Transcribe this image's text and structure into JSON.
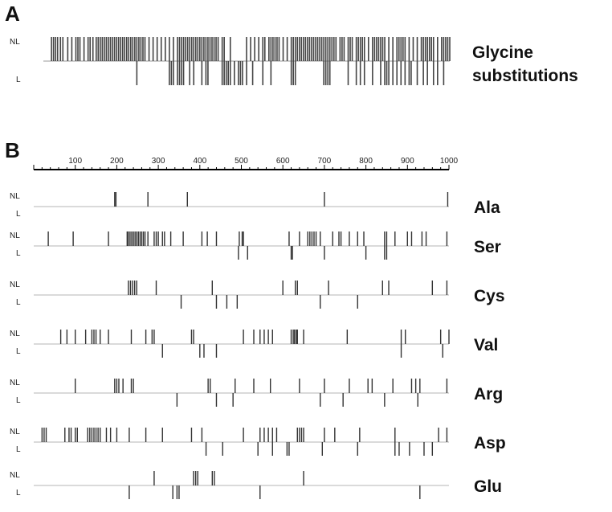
{
  "panel_a": {
    "letter": "A",
    "title_lines": [
      "Glycine",
      "substitutions"
    ],
    "nl_label": "NL",
    "l_label": "L",
    "nl_positions": [
      20,
      25,
      30,
      35,
      42,
      48,
      60,
      70,
      80,
      85,
      90,
      100,
      110,
      115,
      122,
      130,
      135,
      140,
      145,
      150,
      155,
      160,
      165,
      170,
      175,
      180,
      185,
      190,
      195,
      200,
      205,
      210,
      215,
      220,
      225,
      230,
      235,
      240,
      245,
      250,
      260,
      270,
      280,
      290,
      300,
      310,
      320,
      330,
      335,
      340,
      345,
      350,
      355,
      360,
      365,
      370,
      375,
      380,
      385,
      390,
      395,
      400,
      405,
      410,
      415,
      420,
      425,
      430,
      440,
      445,
      460,
      500,
      510,
      520,
      530,
      540,
      545,
      555,
      560,
      565,
      570,
      575,
      580,
      590,
      600,
      610,
      615,
      620,
      625,
      630,
      635,
      640,
      645,
      650,
      655,
      660,
      665,
      670,
      675,
      680,
      685,
      690,
      695,
      700,
      705,
      710,
      715,
      720,
      730,
      735,
      740,
      750,
      755,
      760,
      770,
      775,
      780,
      785,
      790,
      800,
      810,
      815,
      820,
      825,
      830,
      835,
      840,
      850,
      860,
      870,
      875,
      880,
      885,
      890,
      900,
      910,
      920,
      930,
      935,
      940,
      945,
      950,
      955,
      960,
      970,
      980,
      985,
      990,
      995,
      1000
    ],
    "l_positions": [
      230,
      310,
      315,
      320,
      330,
      335,
      340,
      345,
      360,
      370,
      390,
      400,
      405,
      440,
      445,
      450,
      455,
      460,
      470,
      480,
      485,
      490,
      500,
      515,
      540,
      560,
      610,
      615,
      620,
      690,
      695,
      700,
      705,
      750,
      770,
      780,
      790,
      810,
      830,
      840,
      845,
      850,
      860,
      870,
      880,
      890,
      900,
      905,
      920,
      935,
      945,
      960,
      970,
      985
    ]
  },
  "panel_b": {
    "letter": "B",
    "axis_ticks": [
      "100",
      "200",
      "300",
      "400",
      "500",
      "600",
      "700",
      "800",
      "900",
      "1000"
    ],
    "nl_label": "NL",
    "l_label": "L",
    "rows": [
      {
        "name": "Ala",
        "nl": [
          195,
          198,
          275,
          370,
          700,
          997
        ],
        "l": []
      },
      {
        "name": "Ser",
        "nl": [
          35,
          95,
          180,
          225,
          228,
          232,
          236,
          240,
          244,
          248,
          252,
          256,
          260,
          264,
          268,
          275,
          290,
          295,
          300,
          310,
          315,
          330,
          360,
          405,
          418,
          440,
          495,
          502,
          505,
          615,
          640,
          660,
          665,
          670,
          675,
          680,
          690,
          720,
          735,
          740,
          760,
          780,
          795,
          845,
          850,
          870,
          900,
          910,
          935,
          945,
          995
        ],
        "l": [
          493,
          515,
          620,
          623,
          700,
          800,
          845,
          850
        ]
      },
      {
        "name": "Cys",
        "nl": [
          228,
          233,
          238,
          243,
          248,
          295,
          430,
          600,
          630,
          635,
          710,
          840,
          855,
          960,
          995
        ],
        "l": [
          355,
          440,
          465,
          490,
          690,
          780
        ]
      },
      {
        "name": "Val",
        "nl": [
          65,
          80,
          100,
          125,
          140,
          145,
          150,
          160,
          180,
          235,
          270,
          285,
          290,
          380,
          385,
          505,
          530,
          545,
          555,
          565,
          575,
          620,
          625,
          628,
          632,
          635,
          650,
          755,
          885,
          895,
          980,
          1000
        ],
        "l": [
          310,
          400,
          410,
          440,
          885,
          985
        ]
      },
      {
        "name": "Arg",
        "nl": [
          100,
          195,
          200,
          205,
          215,
          235,
          240,
          420,
          425,
          485,
          530,
          570,
          640,
          700,
          760,
          805,
          815,
          865,
          910,
          920,
          930,
          995
        ],
        "l": [
          345,
          440,
          480,
          690,
          745,
          845,
          925
        ]
      },
      {
        "name": "Asp",
        "nl": [
          20,
          25,
          30,
          75,
          85,
          90,
          100,
          105,
          130,
          135,
          140,
          145,
          150,
          155,
          160,
          175,
          185,
          200,
          230,
          270,
          310,
          380,
          405,
          505,
          545,
          555,
          565,
          575,
          585,
          635,
          640,
          645,
          650,
          700,
          725,
          785,
          870,
          975,
          995
        ],
        "l": [
          415,
          455,
          540,
          575,
          610,
          615,
          695,
          780,
          870,
          880,
          905,
          940,
          960
        ]
      },
      {
        "name": "Glu",
        "nl": [
          290,
          385,
          390,
          395,
          430,
          435,
          650
        ],
        "l": [
          230,
          335,
          345,
          350,
          545,
          930
        ]
      }
    ]
  }
}
